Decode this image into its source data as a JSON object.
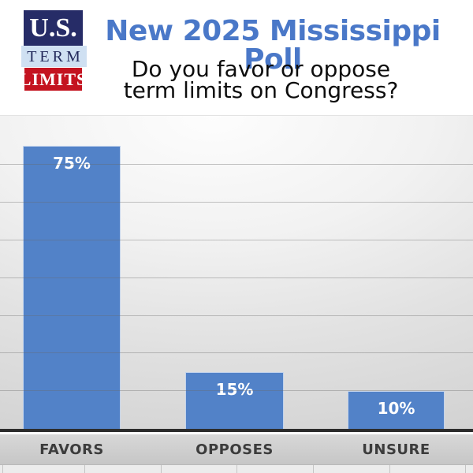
{
  "logo": {
    "us": "U.S.",
    "term": "TERM",
    "limits": "LIMITS",
    "navy_color": "#262c67",
    "band_color": "#cfe0f2",
    "red_color": "#c41320"
  },
  "header": {
    "title": "New 2025 Mississippi Poll",
    "title_color": "#4a78c8",
    "subtitle_line1": "Do you favor or oppose",
    "subtitle_line2": "term limits on Congress?"
  },
  "chart_data": {
    "type": "bar",
    "title": "",
    "xlabel": "",
    "ylabel": "",
    "categories": [
      "FAVORS",
      "OPPOSES",
      "UNSURE"
    ],
    "values": [
      75,
      15,
      10
    ],
    "value_labels": [
      "75%",
      "15%",
      "10%"
    ],
    "bar_color": "#5282c8",
    "value_label_color": "#ffffff",
    "category_label_color": "#3c3c3c",
    "ylim": [
      0,
      83
    ],
    "gridline_interval": 10,
    "grid": true,
    "legend": false
  }
}
